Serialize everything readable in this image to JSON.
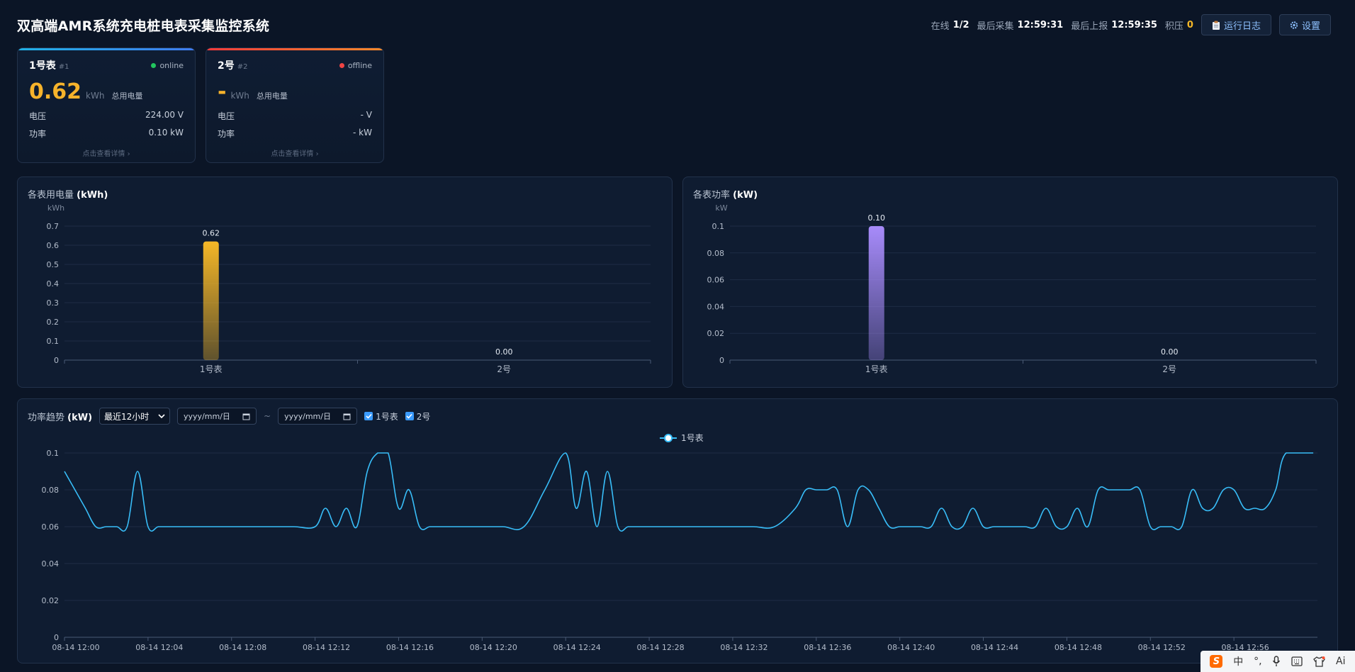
{
  "header": {
    "title": "双高端AMR系统充电桩电表采集监控系统",
    "online_label": "在线",
    "online_value": "1/2",
    "last_collect_label": "最后采集",
    "last_collect_value": "12:59:31",
    "last_report_label": "最后上报",
    "last_report_value": "12:59:35",
    "backlog_label": "积压",
    "backlog_value": "0",
    "log_button": "运行日志",
    "settings_button": "设置"
  },
  "meters": [
    {
      "name": "1号表",
      "id": "#1",
      "status": "online",
      "status_color": "#22c55e",
      "energy": "0.62",
      "energy_unit": "kWh",
      "energy_label": "总用电量",
      "voltage_label": "电压",
      "voltage": "224.00 V",
      "power_label": "功率",
      "power": "0.10 kW",
      "hint": "点击查看详情 ›"
    },
    {
      "name": "2号",
      "id": "#2",
      "status": "offline",
      "status_color": "#ef4444",
      "energy": "-",
      "energy_unit": "kWh",
      "energy_label": "总用电量",
      "voltage_label": "电压",
      "voltage": "- V",
      "power_label": "功率",
      "power": "- kW",
      "hint": "点击查看详情 ›"
    }
  ],
  "energy_panel": {
    "title_prefix": "各表用电量",
    "title_unit": "(kWh)"
  },
  "power_panel": {
    "title_prefix": "各表功率",
    "title_unit": "(kW)"
  },
  "trend_panel": {
    "title_prefix": "功率趋势",
    "title_unit": "(kW)",
    "range_select": "最近12小时",
    "date_from_placeholder": "yyyy/mm/日",
    "date_to_placeholder": "yyyy/mm/日",
    "tilde": "~",
    "check_1": "1号表",
    "check_2": "2号"
  },
  "ime_bar": {
    "lang": "中",
    "ai": "Ai"
  },
  "chart_data": [
    {
      "type": "bar",
      "title": "各表用电量 (kWh)",
      "ylabel": "kWh",
      "categories": [
        "1号表",
        "2号"
      ],
      "values": [
        0.62,
        0.0
      ],
      "value_labels": [
        "0.62",
        "0.00"
      ],
      "ylim": [
        0,
        0.7
      ],
      "yticks": [
        "0",
        "0.1",
        "0.2",
        "0.3",
        "0.4",
        "0.5",
        "0.6",
        "0.7"
      ],
      "bar_color": "#f5b727",
      "grid": true
    },
    {
      "type": "bar",
      "title": "各表功率 (kW)",
      "ylabel": "kW",
      "categories": [
        "1号表",
        "2号"
      ],
      "values": [
        0.1,
        0.0
      ],
      "value_labels": [
        "0.10",
        "0.00"
      ],
      "ylim": [
        0,
        0.1
      ],
      "yticks": [
        "0",
        "0.02",
        "0.04",
        "0.06",
        "0.08",
        "0.1"
      ],
      "bar_color": "#a78bfa",
      "grid": true
    },
    {
      "type": "line",
      "title": "功率趋势 (kW)",
      "legend": "top-center",
      "series_name": "1号表",
      "color": "#38bdf8",
      "ylim": [
        0,
        0.1
      ],
      "yticks": [
        "0",
        "0.02",
        "0.04",
        "0.06",
        "0.08",
        "0.1"
      ],
      "xticks": [
        "08-14 12:00",
        "08-14 12:04",
        "08-14 12:08",
        "08-14 12:12",
        "08-14 12:16",
        "08-14 12:20",
        "08-14 12:24",
        "08-14 12:28",
        "08-14 12:32",
        "08-14 12:36",
        "08-14 12:40",
        "08-14 12:44",
        "08-14 12:48",
        "08-14 12:52",
        "08-14 12:56"
      ],
      "x_minutes": [
        0,
        0.5,
        1,
        1.5,
        2,
        2.5,
        3,
        3.5,
        4,
        4.5,
        5,
        6,
        7,
        8,
        9,
        10,
        11,
        12,
        12.5,
        13,
        13.5,
        14,
        14.5,
        15,
        15.5,
        16,
        16.5,
        17,
        17.5,
        18,
        18.5,
        19,
        19.5,
        20,
        21,
        22,
        23,
        24,
        24.5,
        25,
        25.5,
        26,
        26.5,
        27,
        27.5,
        28,
        28.5,
        29,
        29.5,
        30,
        31,
        32,
        33,
        34,
        35,
        35.5,
        36,
        36.5,
        37,
        37.5,
        38,
        38.5,
        39,
        39.5,
        40,
        40.5,
        41,
        41.5,
        42,
        42.5,
        43,
        43.5,
        44,
        44.5,
        45,
        45.5,
        46,
        46.5,
        47,
        47.5,
        48,
        48.5,
        49,
        49.5,
        50,
        50.5,
        51,
        51.5,
        52,
        52.5,
        53,
        53.5,
        54,
        54.5,
        55,
        55.5,
        56,
        56.5,
        57,
        57.5,
        58,
        58.5,
        59.8
      ],
      "values": [
        0.09,
        0.08,
        0.07,
        0.06,
        0.06,
        0.06,
        0.06,
        0.09,
        0.06,
        0.06,
        0.06,
        0.06,
        0.06,
        0.06,
        0.06,
        0.06,
        0.06,
        0.06,
        0.07,
        0.06,
        0.07,
        0.06,
        0.09,
        0.1,
        0.1,
        0.07,
        0.08,
        0.06,
        0.06,
        0.06,
        0.06,
        0.06,
        0.06,
        0.06,
        0.06,
        0.06,
        0.08,
        0.1,
        0.07,
        0.09,
        0.06,
        0.09,
        0.06,
        0.06,
        0.06,
        0.06,
        0.06,
        0.06,
        0.06,
        0.06,
        0.06,
        0.06,
        0.06,
        0.06,
        0.07,
        0.08,
        0.08,
        0.08,
        0.08,
        0.06,
        0.08,
        0.08,
        0.07,
        0.06,
        0.06,
        0.06,
        0.06,
        0.06,
        0.07,
        0.06,
        0.06,
        0.07,
        0.06,
        0.06,
        0.06,
        0.06,
        0.06,
        0.06,
        0.07,
        0.06,
        0.06,
        0.07,
        0.06,
        0.08,
        0.08,
        0.08,
        0.08,
        0.08,
        0.06,
        0.06,
        0.06,
        0.06,
        0.08,
        0.07,
        0.07,
        0.08,
        0.08,
        0.07,
        0.07,
        0.07,
        0.08,
        0.1,
        0.1
      ],
      "x_range": [
        0,
        60
      ],
      "grid": true
    }
  ]
}
